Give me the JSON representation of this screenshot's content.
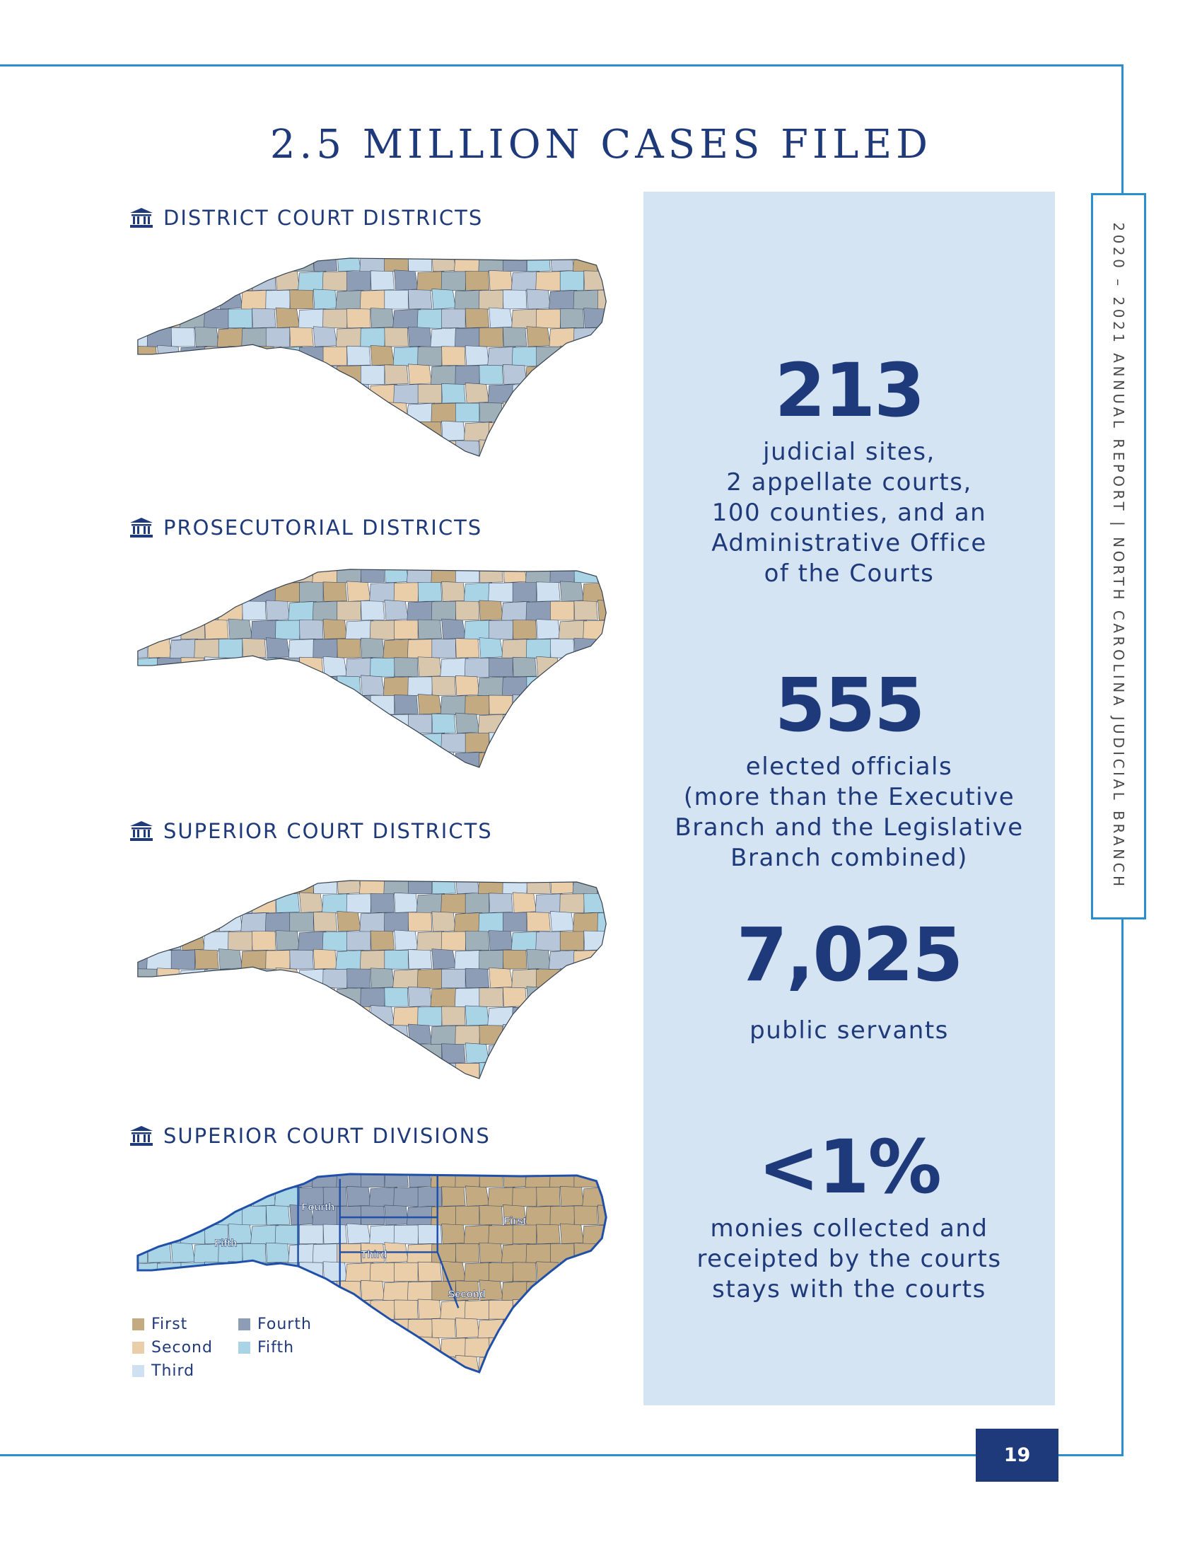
{
  "title": "2.5 MILLION CASES FILED",
  "side_tab": {
    "text": "2020 – 2021 ANNUAL REPORT | NORTH CAROLINA JUDICIAL BRANCH"
  },
  "sections": [
    {
      "heading": "DISTRICT COURT DISTRICTS",
      "icon": "courthouse-icon"
    },
    {
      "heading": "PROSECUTORIAL DISTRICTS",
      "icon": "courthouse-icon"
    },
    {
      "heading": "SUPERIOR COURT DISTRICTS",
      "icon": "courthouse-icon"
    },
    {
      "heading": "SUPERIOR COURT DIVISIONS",
      "icon": "courthouse-icon"
    }
  ],
  "division_labels": {
    "fourth": "Fourth",
    "first": "First",
    "fifth": "Fifth",
    "third": "Third",
    "second": "Second"
  },
  "legend": [
    {
      "label": "First",
      "color": "#c4aa80"
    },
    {
      "label": "Fourth",
      "color": "#8e9db6"
    },
    {
      "label": "Second",
      "color": "#eacda9"
    },
    {
      "label": "Fifth",
      "color": "#a9d4e6"
    },
    {
      "label": "Third",
      "color": "#cfe0f0"
    }
  ],
  "stats": [
    {
      "number": "213",
      "description": [
        "judicial sites,",
        "2 appellate courts,",
        "100 counties, and an",
        "Administrative Office",
        "of the Courts"
      ]
    },
    {
      "number": "555",
      "description": [
        "elected officials",
        "(more than the Executive",
        "Branch and the Legislative",
        "Branch combined)"
      ]
    },
    {
      "number": "7,025",
      "description": [
        "public servants"
      ]
    },
    {
      "number": "<1%",
      "description": [
        "monies collected and",
        "receipted by the courts",
        "stays with the courts"
      ]
    }
  ],
  "page_number": "19",
  "colors": {
    "navy": "#1f3a7a",
    "frame_blue": "#2a8fd0",
    "panel": "#d5e4f2",
    "map_palette": [
      "#8e9db6",
      "#c4aa80",
      "#eacda9",
      "#a9d4e6",
      "#cfe0f0",
      "#9fb0b8",
      "#b7c6d8",
      "#d9c7ad"
    ]
  }
}
